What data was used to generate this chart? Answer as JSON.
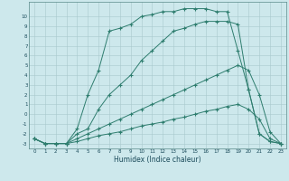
{
  "xlabel": "Humidex (Indice chaleur)",
  "x_values": [
    0,
    1,
    2,
    3,
    4,
    5,
    6,
    7,
    8,
    9,
    10,
    11,
    12,
    13,
    14,
    15,
    16,
    17,
    18,
    19,
    20,
    21,
    22,
    23
  ],
  "line1": [
    -2.5,
    -3,
    -3,
    -3,
    -2.8,
    -2.5,
    -2.2,
    -2.0,
    -1.8,
    -1.5,
    -1.2,
    -1.0,
    -0.8,
    -0.5,
    -0.3,
    0.0,
    0.3,
    0.5,
    0.8,
    1.0,
    0.5,
    -0.5,
    -2.5,
    -3.0
  ],
  "line2": [
    -2.5,
    -3,
    -3,
    -3,
    -2.5,
    -2.0,
    -1.5,
    -1.0,
    -0.5,
    0.0,
    0.5,
    1.0,
    1.5,
    2.0,
    2.5,
    3.0,
    3.5,
    4.0,
    4.5,
    5.0,
    4.5,
    2.0,
    -1.8,
    -3.0
  ],
  "line3": [
    -2.5,
    -3,
    -3,
    -3,
    -2.0,
    -1.5,
    0.5,
    2.0,
    3.0,
    4.0,
    5.5,
    6.5,
    7.5,
    8.5,
    8.8,
    9.2,
    9.5,
    9.5,
    9.5,
    9.2,
    2.5,
    -2.0,
    -2.8,
    -3.0
  ],
  "line4": [
    -2.5,
    -3,
    -3,
    -3,
    -1.5,
    2.0,
    4.5,
    8.5,
    8.8,
    9.2,
    10.0,
    10.2,
    10.5,
    10.5,
    10.8,
    10.8,
    10.8,
    10.5,
    10.5,
    6.5,
    2.5,
    -2.0,
    -2.8,
    -3.0
  ],
  "color": "#2e7d6e",
  "bg_color": "#cde8ec",
  "grid_color": "#a8c8cc",
  "ylim": [
    -3.5,
    11.5
  ],
  "xlim": [
    -0.5,
    23.5
  ],
  "yticks": [
    -3,
    -2,
    -1,
    0,
    1,
    2,
    3,
    4,
    5,
    6,
    7,
    8,
    9,
    10
  ],
  "xticks": [
    0,
    1,
    2,
    3,
    4,
    5,
    6,
    7,
    8,
    9,
    10,
    11,
    12,
    13,
    14,
    15,
    16,
    17,
    18,
    19,
    20,
    21,
    22,
    23
  ]
}
